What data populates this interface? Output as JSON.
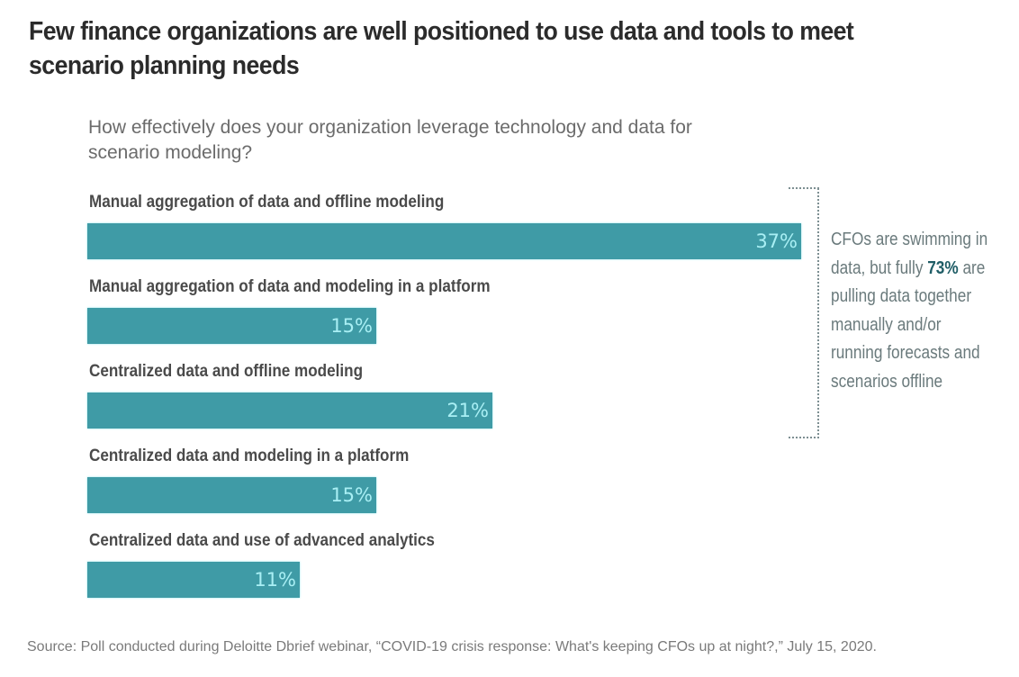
{
  "header": {
    "title": "Few finance organizations are well positioned to use data and tools to meet scenario planning needs"
  },
  "colors": {
    "bar": "#3f9ba6",
    "bar_label": "#a9eff4",
    "callout_highlight": "#1f5d66"
  },
  "callout": {
    "line1": "CFOs are swimming in",
    "line2_pre": "data, but fully ",
    "line2_bold": "73%",
    "line2_post": " are",
    "line3": "pulling data together",
    "line4": "manually and/or",
    "line5": "running forecasts and",
    "line6": "scenarios offline"
  },
  "footer": {
    "source": "Source: Poll conducted during Deloitte Dbrief webinar, “COVID-19 crisis response: What's keeping CFOs up at night?,” July 15, 2020."
  },
  "chart_data": {
    "type": "bar",
    "orientation": "horizontal",
    "title": "Few finance organizations are well positioned to use data and tools to meet scenario planning needs",
    "subtitle": "How effectively does your organization leverage technology and data for scenario modeling?",
    "categories": [
      "Manual aggregation of data and offline modeling",
      "Manual aggregation of data and modeling in a platform",
      "Centralized data and offline modeling",
      "Centralized data and modeling in a platform",
      "Centralized data and use of advanced analytics"
    ],
    "values": [
      37,
      15,
      21,
      15,
      11
    ],
    "value_labels": [
      "37%",
      "15%",
      "21%",
      "15%",
      "11%"
    ],
    "unit": "%",
    "xlim": [
      0,
      37
    ],
    "grid": false,
    "legend": "none",
    "annotation": "CFOs are swimming in data, but fully 73% are pulling data together manually and/or running forecasts and scenarios offline",
    "annotation_bracket_covers": [
      "Manual aggregation of data and offline modeling",
      "Manual aggregation of data and modeling in a platform",
      "Centralized data and offline modeling"
    ]
  }
}
